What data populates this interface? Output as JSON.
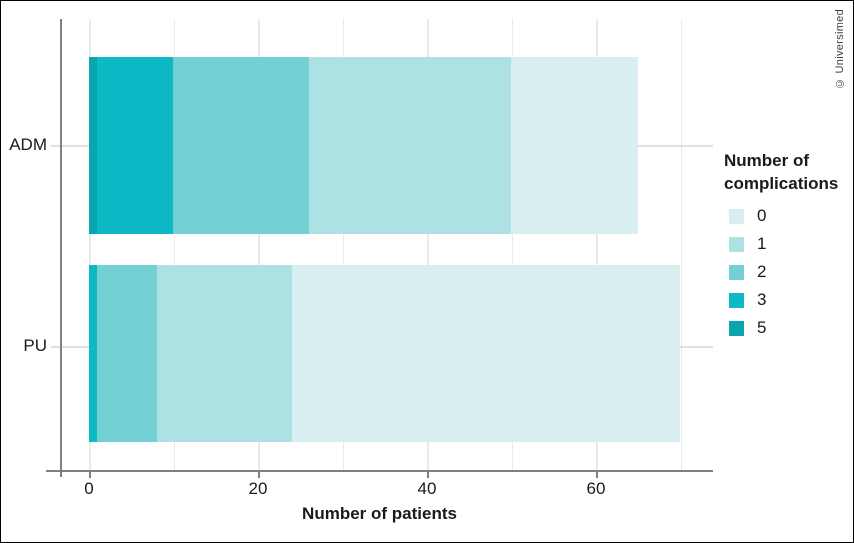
{
  "copyright": "© Universimed",
  "chart_data": {
    "type": "bar",
    "subtype": "horizontal-stacked",
    "categories": [
      "ADM",
      "PU"
    ],
    "series": [
      {
        "name": "0",
        "color": "#d8eef0",
        "values": [
          15,
          46
        ]
      },
      {
        "name": "1",
        "color": "#aee1e3",
        "values": [
          24,
          16
        ]
      },
      {
        "name": "2",
        "color": "#73d0d5",
        "values": [
          16,
          7
        ]
      },
      {
        "name": "3",
        "color": "#0cb9c5",
        "values": [
          9,
          1
        ]
      },
      {
        "name": "5",
        "color": "#0aa6b0",
        "values": [
          1,
          0
        ]
      }
    ],
    "stack_order": "highest complication count drawn first (darkest at zero end)",
    "totals": [
      65,
      70
    ],
    "title": "",
    "xlabel": "Number of patients",
    "ylabel": "",
    "xlim": [
      0,
      74
    ],
    "x_ticks": [
      0,
      20,
      40,
      60
    ],
    "x_gridlines": [
      0,
      10,
      20,
      30,
      40,
      50,
      60,
      70
    ],
    "grid": "on",
    "legend_position": "right",
    "legend_title_lines": [
      "Number of",
      "complications"
    ]
  }
}
